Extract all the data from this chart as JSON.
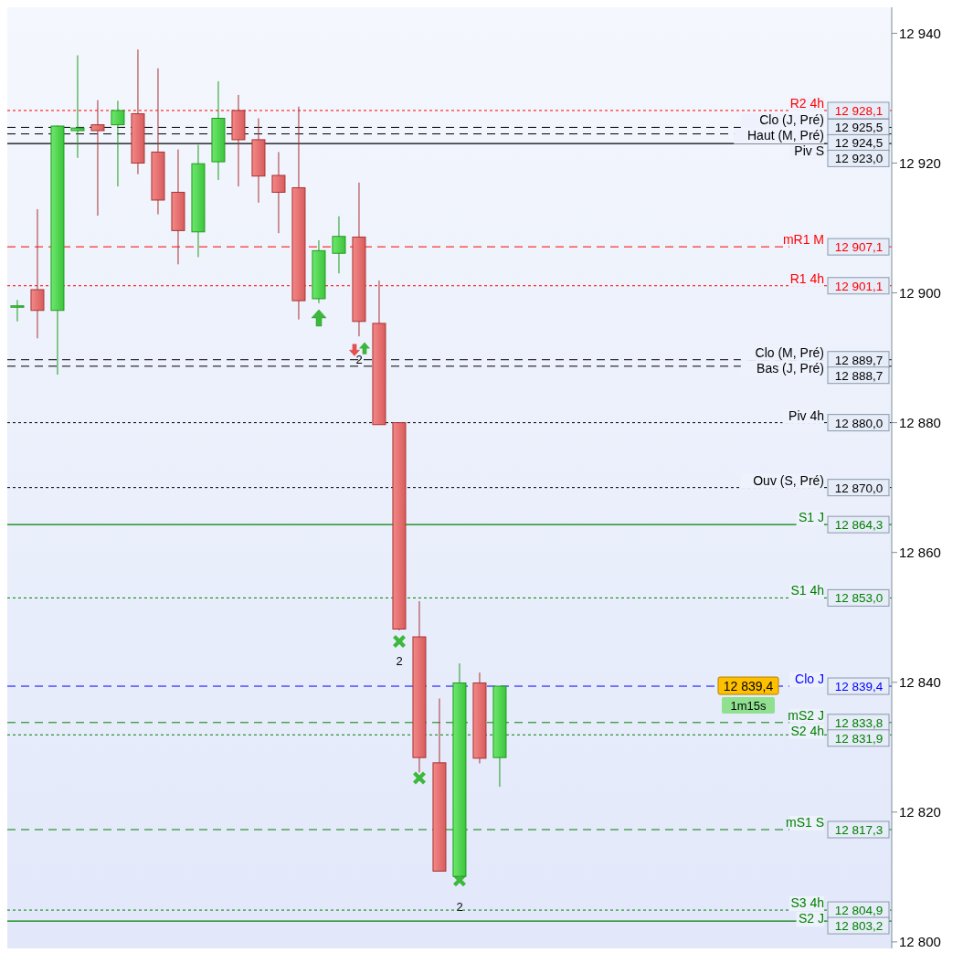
{
  "chart_data": {
    "type": "candlestick",
    "categories": [
      null,
      null,
      null,
      null,
      null,
      null,
      null,
      null,
      null,
      null,
      null,
      null,
      null,
      null,
      null,
      null,
      null,
      null,
      null,
      null,
      null,
      null,
      null,
      null,
      null,
      null,
      null,
      null,
      null,
      null,
      null,
      null,
      null,
      null,
      null,
      null,
      null,
      null,
      null,
      null,
      null,
      null,
      null,
      null
    ],
    "ohlc": [
      [
        12898.0,
        12898.9,
        12895.6,
        12898.0
      ],
      [
        12900.5,
        12912.9,
        12893.0,
        12897.3
      ],
      [
        12897.3,
        12925.8,
        12887.4,
        12925.7
      ],
      [
        12925.0,
        12936.6,
        12920.8,
        12925.4
      ],
      [
        12925.9,
        12929.7,
        12911.9,
        12925.0
      ],
      [
        12925.9,
        12929.6,
        12916.4,
        12928.1
      ],
      [
        12927.6,
        12937.5,
        12918.3,
        12920.0
      ],
      [
        12921.7,
        12934.6,
        12912.1,
        12914.3
      ],
      [
        12915.5,
        12922.1,
        12904.4,
        12909.6
      ],
      [
        12909.4,
        12922.8,
        12905.5,
        12919.9
      ],
      [
        12920.2,
        12932.6,
        12917.4,
        12926.9
      ],
      [
        12928.1,
        12930.5,
        12916.4,
        12923.6
      ],
      [
        12923.6,
        12926.9,
        12913.9,
        12918.0
      ],
      [
        12918.1,
        12921.7,
        12909.2,
        12915.5
      ],
      [
        12916.2,
        12928.7,
        12895.9,
        12898.8
      ],
      [
        12899.1,
        12908.1,
        12898.4,
        12906.5
      ],
      [
        12906.1,
        12911.8,
        12903.0,
        12908.7
      ],
      [
        12908.6,
        12917.0,
        12893.3,
        12895.6
      ],
      [
        12895.3,
        12901.9,
        12879.7,
        12879.7
      ],
      [
        12880.0,
        12880.0,
        12848.0,
        12848.2
      ],
      [
        12847.0,
        12852.5,
        12826.1,
        12828.4
      ],
      [
        12827.6,
        12837.5,
        12810.9,
        12810.9
      ],
      [
        12810.1,
        12842.9,
        12810.1,
        12839.9
      ],
      [
        12839.9,
        12841.5,
        12827.5,
        12828.3
      ],
      [
        12828.4,
        12839.4,
        12823.9,
        12839.4
      ],
      null,
      null,
      null,
      null,
      null,
      null,
      null,
      null,
      null,
      null,
      null,
      null,
      null,
      null,
      null,
      null,
      null,
      null,
      null
    ],
    "ylim": [
      12799,
      12944
    ],
    "yticks": [
      {
        "value": 12800,
        "label": "12 800"
      },
      {
        "value": 12820,
        "label": "12 820"
      },
      {
        "value": 12840,
        "label": "12 840"
      },
      {
        "value": 12860,
        "label": "12 860"
      },
      {
        "value": 12880,
        "label": "12 880"
      },
      {
        "value": 12900,
        "label": "12 900"
      },
      {
        "value": 12920,
        "label": "12 920"
      },
      {
        "value": 12940,
        "label": "12 940"
      }
    ],
    "ref_lines": [
      {
        "axis": "y",
        "value": 12928.1,
        "label": "R2 4h",
        "color": "#ff0000",
        "line_style": "dotted"
      },
      {
        "axis": "y",
        "value": 12925.5,
        "label": "Clo (J, Pré)",
        "color": "#000000",
        "line_style": "dashed"
      },
      {
        "axis": "y",
        "value": 12924.5,
        "label": "Haut (M, Pré)",
        "color": "#000000",
        "line_style": "dashed"
      },
      {
        "axis": "y",
        "value": 12923.0,
        "label": "Piv S",
        "color": "#000000",
        "line_style": "solid"
      },
      {
        "axis": "y",
        "value": 12907.1,
        "label": "mR1 M",
        "color": "#ff0000",
        "line_style": "dashed"
      },
      {
        "axis": "y",
        "value": 12901.1,
        "label": "R1 4h",
        "color": "#ff0000",
        "line_style": "dotted"
      },
      {
        "axis": "y",
        "value": 12889.7,
        "label": "Clo (M, Pré)",
        "color": "#000000",
        "line_style": "dashed"
      },
      {
        "axis": "y",
        "value": 12888.7,
        "label": "Bas (J, Pré)",
        "color": "#000000",
        "line_style": "dashed"
      },
      {
        "axis": "y",
        "value": 12880.0,
        "label": "Piv 4h",
        "color": "#000000",
        "line_style": "dotted"
      },
      {
        "axis": "y",
        "value": 12870.0,
        "label": "Ouv (S, Pré)",
        "color": "#000000",
        "line_style": "dotted"
      },
      {
        "axis": "y",
        "value": 12864.3,
        "label": "S1 J",
        "color": "#008000",
        "line_style": "solid"
      },
      {
        "axis": "y",
        "value": 12853.0,
        "label": "S1 4h",
        "color": "#008000",
        "line_style": "dotted"
      },
      {
        "axis": "y",
        "value": 12839.4,
        "label": "Clo J",
        "color": "#0000ff",
        "line_style": "dashed"
      },
      {
        "axis": "y",
        "value": 12833.8,
        "label": "mS2 J",
        "color": "#008000",
        "line_style": "dashed"
      },
      {
        "axis": "y",
        "value": 12831.9,
        "label": "S2 4h",
        "color": "#008000",
        "line_style": "dotted"
      },
      {
        "axis": "y",
        "value": 12817.3,
        "label": "mS1 S",
        "color": "#008000",
        "line_style": "dashed"
      },
      {
        "axis": "y",
        "value": 12804.9,
        "label": "S3 4h",
        "color": "#008000",
        "line_style": "dotted"
      },
      {
        "axis": "y",
        "value": 12803.2,
        "label": "S2 J",
        "color": "#008000",
        "line_style": "solid"
      }
    ],
    "annotations": [
      "2",
      "2",
      "2",
      "1m15s",
      {
        "text": "12 839,4",
        "y": 12839.4
      },
      {
        "text": "12 928,1",
        "y": 12928.1
      },
      {
        "text": "12 925,5",
        "y": 12925.5
      },
      {
        "text": "12 924,5",
        "y": 12924.5
      },
      {
        "text": "12 923,0",
        "y": 12923.0
      },
      {
        "text": "12 907,1",
        "y": 12907.1
      },
      {
        "text": "12 901,1",
        "y": 12901.1
      },
      {
        "text": "12 889,7",
        "y": 12889.7
      },
      {
        "text": "12 888,7",
        "y": 12888.7
      },
      {
        "text": "12 880,0",
        "y": 12880.0
      },
      {
        "text": "12 870,0",
        "y": 12870.0
      },
      {
        "text": "12 864,3",
        "y": 12864.3
      },
      {
        "text": "12 853,0",
        "y": 12853.0
      },
      {
        "text": "12 839,4",
        "y": 12839.4
      },
      {
        "text": "12 833,8",
        "y": 12833.8
      },
      {
        "text": "12 831,9",
        "y": 12831.9
      },
      {
        "text": "12 817,3",
        "y": 12817.3
      },
      {
        "text": "12 804,9",
        "y": 12804.9
      },
      {
        "text": "12 803,2",
        "y": 12803.2
      }
    ]
  }
}
